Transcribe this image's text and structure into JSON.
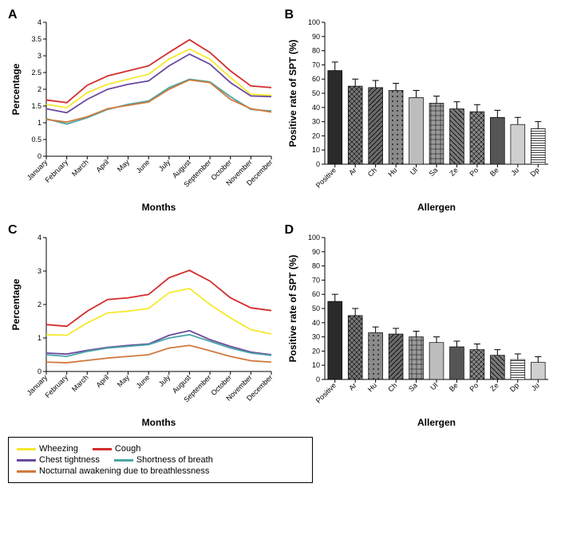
{
  "panels": {
    "A": "A",
    "B": "B",
    "C": "C",
    "D": "D"
  },
  "line_chart_common": {
    "months": [
      "January",
      "February",
      "March",
      "April",
      "May",
      "June",
      "July",
      "August",
      "September",
      "October",
      "November",
      "December"
    ],
    "xlabel": "Months",
    "ylabel": "Percentage",
    "label_fontsize": 12,
    "tick_fontsize": 9,
    "background_color": "#ffffff",
    "line_width": 1.8,
    "series_colors": {
      "Wheezing": "#f5e92c",
      "Cough": "#d22d2d",
      "Chest tightness": "#6a4a9e",
      "Shortness of breath": "#4aa6a6",
      "Nocturnal awakening due to breathlessness": "#d07a3e"
    }
  },
  "chartA": {
    "type": "line",
    "ylim": [
      0,
      4
    ],
    "ytick_step": 0.5,
    "series": {
      "Cough": [
        1.68,
        1.6,
        2.12,
        2.4,
        2.55,
        2.7,
        3.1,
        3.48,
        3.1,
        2.55,
        2.1,
        2.05
      ],
      "Wheezing": [
        1.55,
        1.45,
        1.9,
        2.15,
        2.3,
        2.45,
        2.9,
        3.2,
        2.9,
        2.35,
        1.85,
        1.82
      ],
      "Chest tightness": [
        1.42,
        1.3,
        1.7,
        2.0,
        2.15,
        2.25,
        2.7,
        3.05,
        2.75,
        2.2,
        1.8,
        1.78
      ],
      "Shortness of breath": [
        1.12,
        0.96,
        1.15,
        1.4,
        1.55,
        1.65,
        2.05,
        2.3,
        2.22,
        1.78,
        1.4,
        1.35
      ],
      "Nocturnal awakening due to breathlessness": [
        1.1,
        1.02,
        1.18,
        1.42,
        1.52,
        1.62,
        2.0,
        2.28,
        2.2,
        1.7,
        1.42,
        1.32
      ]
    }
  },
  "chartC": {
    "type": "line",
    "ylim": [
      0,
      4
    ],
    "ytick_step": 1,
    "series": {
      "Cough": [
        1.4,
        1.35,
        1.8,
        2.15,
        2.2,
        2.3,
        2.8,
        3.02,
        2.7,
        2.2,
        1.9,
        1.82
      ],
      "Wheezing": [
        1.1,
        1.08,
        1.45,
        1.75,
        1.8,
        1.88,
        2.35,
        2.48,
        2.0,
        1.6,
        1.25,
        1.12
      ],
      "Chest tightness": [
        0.55,
        0.52,
        0.63,
        0.72,
        0.78,
        0.82,
        1.08,
        1.22,
        0.95,
        0.75,
        0.58,
        0.5
      ],
      "Shortness of breath": [
        0.5,
        0.45,
        0.6,
        0.7,
        0.75,
        0.8,
        1.0,
        1.1,
        0.9,
        0.7,
        0.55,
        0.48
      ],
      "Nocturnal awakening due to breathlessness": [
        0.28,
        0.26,
        0.33,
        0.4,
        0.45,
        0.5,
        0.7,
        0.78,
        0.62,
        0.45,
        0.32,
        0.28
      ]
    }
  },
  "bar_chart_common": {
    "type": "bar",
    "xlabel": "Allergen",
    "ylabel": "Positive rate of SPT (%)",
    "ylim": [
      0,
      100
    ],
    "ytick_step": 10,
    "label_fontsize": 12,
    "tick_fontsize": 9,
    "bar_width": 0.7,
    "error_cap": 4,
    "bar_border": "#000000",
    "patterns": {
      "Positive": "solid-dark",
      "Ar": "crosshatch",
      "Ch": "diag",
      "Hu": "dots",
      "Ul": "light",
      "Sa": "grid",
      "Ze": "diag2",
      "Po": "crosshatch2",
      "Be": "medium",
      "Ju": "light2",
      "Dp": "hstripe"
    }
  },
  "chartB": {
    "categories": [
      "Positive",
      "Ar",
      "Ch",
      "Hu",
      "Ul",
      "Sa",
      "Ze",
      "Po",
      "Be",
      "Ju",
      "Dp"
    ],
    "values": [
      66,
      55,
      54,
      52,
      47,
      43,
      39,
      37,
      33,
      28,
      25
    ],
    "errors": [
      6,
      5,
      5,
      5,
      5,
      5,
      5,
      5,
      5,
      5,
      5
    ]
  },
  "chartD": {
    "categories": [
      "Positive",
      "Ar",
      "Hu",
      "Ch",
      "Sa",
      "Ul",
      "Be",
      "Po",
      "Ze",
      "Dp",
      "Ju"
    ],
    "values": [
      55,
      45,
      33,
      32,
      30,
      26,
      23,
      21,
      17,
      14,
      12
    ],
    "errors": [
      5,
      5,
      4,
      4,
      4,
      4,
      4,
      4,
      4,
      4,
      4
    ]
  },
  "legend": {
    "rows": [
      [
        "Wheezing",
        "Cough"
      ],
      [
        "Chest tightness",
        "Shortness of breath"
      ],
      [
        "Nocturnal awakening due to breathlessness"
      ]
    ]
  }
}
